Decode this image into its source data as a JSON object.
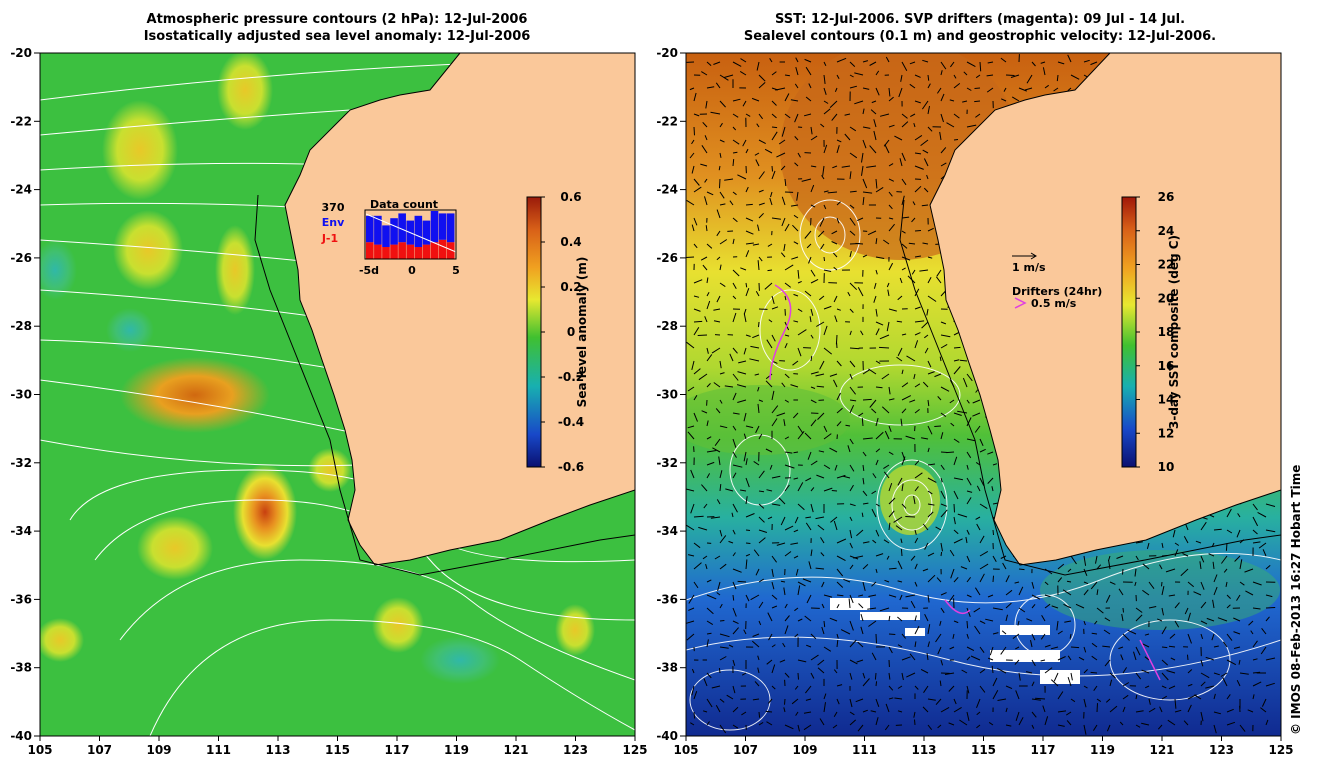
{
  "left_panel": {
    "title_line1": "Atmospheric pressure contours (2 hPa): 12-Jul-2006",
    "title_line2": "Isostatically adjusted sea level anomaly: 12-Jul-2006",
    "colorbar": {
      "label": "Sea level anomaly (m)",
      "ticks": [
        "0.6",
        "0.4",
        "0.2",
        "0",
        "-0.2",
        "-0.4",
        "-0.6"
      ],
      "stops": [
        "#9a1a0a",
        "#d86018",
        "#f0a020",
        "#e8e830",
        "#40c030",
        "#18b0b0",
        "#1848c8",
        "#0a1070"
      ]
    },
    "inset": {
      "count_value": "370",
      "env_label": "Env",
      "j1_label": "J-1",
      "title": "Data count",
      "xticks": [
        "-5d",
        "0",
        "5"
      ],
      "env_color": "#1010f0",
      "j1_color": "#f01010"
    },
    "land_color": "#fac89a"
  },
  "right_panel": {
    "title_line1": "SST: 12-Jul-2006. SVP drifters (magenta): 09 Jul - 14 Jul.",
    "title_line2": "Sealevel contours (0.1 m) and geostrophic velocity: 12-Jul-2006.",
    "colorbar": {
      "label": "3-day SST composite (deg C)",
      "ticks": [
        "26",
        "24",
        "22",
        "20",
        "18",
        "16",
        "14",
        "12",
        "10"
      ],
      "stops": [
        "#a01808",
        "#d86018",
        "#f0a020",
        "#e8e830",
        "#40c030",
        "#18b0b0",
        "#1848c8",
        "#0a1070"
      ]
    },
    "scale_label": "1 m/s",
    "drifter_title": "Drifters (24hr)",
    "drifter_speed": "0.5 m/s",
    "drifter_color": "#e040e0",
    "land_color": "#fac89a"
  },
  "axes": {
    "y_ticks": [
      "-20",
      "-22",
      "-24",
      "-26",
      "-28",
      "-30",
      "-32",
      "-34",
      "-36",
      "-38",
      "-40"
    ],
    "x_ticks": [
      "105",
      "107",
      "109",
      "111",
      "113",
      "115",
      "117",
      "119",
      "121",
      "123",
      "125"
    ]
  },
  "credit": "© IMOS 08-Feb-2013 16:27 Hobart Time"
}
